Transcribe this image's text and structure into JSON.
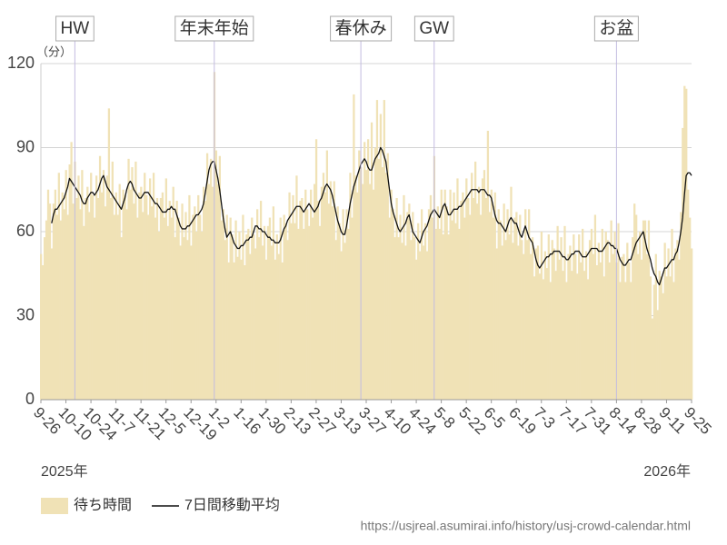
{
  "chart_data": {
    "type": "bar",
    "y_label": "（分）",
    "start_year_label": "2025年",
    "end_year_label": "2026年",
    "source": "https://usjreal.asumirai.info/history/usj-crowd-calendar.html",
    "legend": "bottom-left",
    "grid": true,
    "xlim": [
      0,
      364
    ],
    "ylim": [
      0,
      120
    ],
    "yticks": [
      0,
      30,
      60,
      90,
      120
    ],
    "xticks": [
      {
        "value": 0,
        "label": "9-26"
      },
      {
        "value": 14,
        "label": "10-10"
      },
      {
        "value": 28,
        "label": "10-24"
      },
      {
        "value": 42,
        "label": "11-7"
      },
      {
        "value": 56,
        "label": "11-21"
      },
      {
        "value": 70,
        "label": "12-5"
      },
      {
        "value": 84,
        "label": "12-19"
      },
      {
        "value": 98,
        "label": "1-2"
      },
      {
        "value": 112,
        "label": "1-16"
      },
      {
        "value": 126,
        "label": "1-30"
      },
      {
        "value": 140,
        "label": "2-13"
      },
      {
        "value": 154,
        "label": "2-27"
      },
      {
        "value": 168,
        "label": "3-13"
      },
      {
        "value": 182,
        "label": "3-27"
      },
      {
        "value": 196,
        "label": "4-10"
      },
      {
        "value": 210,
        "label": "4-24"
      },
      {
        "value": 224,
        "label": "5-8"
      },
      {
        "value": 238,
        "label": "5-22"
      },
      {
        "value": 252,
        "label": "6-5"
      },
      {
        "value": 266,
        "label": "6-19"
      },
      {
        "value": 280,
        "label": "7-3"
      },
      {
        "value": 294,
        "label": "7-17"
      },
      {
        "value": 308,
        "label": "7-31"
      },
      {
        "value": 322,
        "label": "8-14"
      },
      {
        "value": 336,
        "label": "8-28"
      },
      {
        "value": 350,
        "label": "9-11"
      },
      {
        "value": 364,
        "label": "9-25"
      }
    ],
    "annotations": [
      {
        "x": 19,
        "label": "HW"
      },
      {
        "x": 97,
        "label": "年末年始"
      },
      {
        "x": 179,
        "label": "春休み"
      },
      {
        "x": 220,
        "label": "GW"
      },
      {
        "x": 322,
        "label": "お盆"
      }
    ],
    "x": [
      0,
      1,
      2,
      3,
      4,
      5,
      6,
      7,
      8,
      9,
      10,
      11,
      12,
      13,
      14,
      15,
      16,
      17,
      18,
      19,
      20,
      21,
      22,
      23,
      24,
      25,
      26,
      27,
      28,
      29,
      30,
      31,
      32,
      33,
      34,
      35,
      36,
      37,
      38,
      39,
      40,
      41,
      42,
      43,
      44,
      45,
      46,
      47,
      48,
      49,
      50,
      51,
      52,
      53,
      54,
      55,
      56,
      57,
      58,
      59,
      60,
      61,
      62,
      63,
      64,
      65,
      66,
      67,
      68,
      69,
      70,
      71,
      72,
      73,
      74,
      75,
      76,
      77,
      78,
      79,
      80,
      81,
      82,
      83,
      84,
      85,
      86,
      87,
      88,
      89,
      90,
      91,
      92,
      93,
      94,
      95,
      96,
      97,
      98,
      99,
      100,
      101,
      102,
      103,
      104,
      105,
      106,
      107,
      108,
      109,
      110,
      111,
      112,
      113,
      114,
      115,
      116,
      117,
      118,
      119,
      120,
      121,
      122,
      123,
      124,
      125,
      126,
      127,
      128,
      129,
      130,
      131,
      132,
      133,
      134,
      135,
      136,
      137,
      138,
      139,
      140,
      141,
      142,
      143,
      144,
      145,
      146,
      147,
      148,
      149,
      150,
      151,
      152,
      153,
      154,
      155,
      156,
      157,
      158,
      159,
      160,
      161,
      162,
      163,
      164,
      165,
      166,
      167,
      168,
      169,
      170,
      171,
      172,
      173,
      174,
      175,
      176,
      177,
      178,
      179,
      180,
      181,
      182,
      183,
      184,
      185,
      186,
      187,
      188,
      189,
      190,
      191,
      192,
      193,
      194,
      195,
      196,
      197,
      198,
      199,
      200,
      201,
      202,
      203,
      204,
      205,
      206,
      207,
      208,
      209,
      210,
      211,
      212,
      213,
      214,
      215,
      216,
      217,
      218,
      219,
      220,
      221,
      222,
      223,
      224,
      225,
      226,
      227,
      228,
      229,
      230,
      231,
      232,
      233,
      234,
      235,
      236,
      237,
      238,
      239,
      240,
      241,
      242,
      243,
      244,
      245,
      246,
      247,
      248,
      249,
      250,
      251,
      252,
      253,
      254,
      255,
      256,
      257,
      258,
      259,
      260,
      261,
      262,
      263,
      264,
      265,
      266,
      267,
      268,
      269,
      270,
      271,
      272,
      273,
      274,
      275,
      276,
      277,
      278,
      279,
      280,
      281,
      282,
      283,
      284,
      285,
      286,
      287,
      288,
      289,
      290,
      291,
      292,
      293,
      294,
      295,
      296,
      297,
      298,
      299,
      300,
      301,
      302,
      303,
      304,
      305,
      306,
      307,
      308,
      309,
      310,
      311,
      312,
      313,
      314,
      315,
      316,
      317,
      318,
      319,
      320,
      321,
      322,
      323,
      324,
      325,
      326,
      327,
      328,
      329,
      330,
      331,
      332,
      333,
      334,
      335,
      336,
      337,
      338,
      339,
      340,
      341,
      342,
      343,
      344,
      345,
      346,
      347,
      348,
      349,
      350,
      351,
      352,
      353,
      354,
      355,
      356,
      357,
      358,
      359,
      360,
      361,
      362,
      363,
      364
    ],
    "series": [
      {
        "name": "待ち時間",
        "type": "bar",
        "color": "#f0e2b6",
        "values": [
          52,
          48,
          58,
          64,
          75,
          70,
          54,
          70,
          75,
          66,
          81,
          64,
          74,
          68,
          82,
          66,
          84,
          92,
          70,
          85,
          72,
          80,
          68,
          82,
          62,
          72,
          76,
          67,
          81,
          73,
          65,
          80,
          72,
          87,
          74,
          82,
          69,
          80,
          104,
          72,
          85,
          66,
          74,
          66,
          77,
          58,
          75,
          73,
          68,
          86,
          75,
          83,
          70,
          85,
          65,
          74,
          76,
          67,
          81,
          73,
          66,
          79,
          69,
          81,
          65,
          72,
          60,
          72,
          74,
          65,
          79,
          62,
          71,
          65,
          76,
          58,
          71,
          65,
          55,
          70,
          58,
          67,
          57,
          73,
          55,
          66,
          69,
          60,
          73,
          66,
          60,
          76,
          71,
          88,
          77,
          86,
          76,
          117,
          89,
          77,
          87,
          64,
          68,
          57,
          66,
          49,
          65,
          59,
          49,
          64,
          51,
          60,
          50,
          66,
          48,
          59,
          61,
          52,
          65,
          59,
          54,
          68,
          58,
          71,
          55,
          62,
          50,
          62,
          65,
          55,
          69,
          50,
          59,
          52,
          65,
          49,
          66,
          63,
          57,
          74,
          63,
          73,
          63,
          80,
          61,
          71,
          72,
          61,
          75,
          68,
          62,
          75,
          65,
          77,
          93,
          71,
          62,
          76,
          81,
          74,
          89,
          70,
          78,
          69,
          78,
          57,
          69,
          63,
          53,
          68,
          56,
          68,
          61,
          81,
          65,
          109,
          80,
          74,
          89,
          83,
          77,
          92,
          82,
          93,
          77,
          99,
          75,
          90,
          107,
          86,
          102,
          83,
          107,
          81,
          88,
          65,
          75,
          68,
          58,
          72,
          58,
          66,
          56,
          73,
          55,
          67,
          70,
          57,
          67,
          58,
          50,
          63,
          53,
          68,
          55,
          63,
          53,
          68,
          73,
          65,
          87,
          61,
          69,
          61,
          75,
          59,
          75,
          69,
          59,
          75,
          64,
          74,
          63,
          79,
          61,
          71,
          74,
          65,
          79,
          72,
          66,
          81,
          72,
          85,
          70,
          76,
          66,
          79,
          82,
          72,
          96,
          67,
          75,
          65,
          74,
          54,
          68,
          64,
          55,
          70,
          57,
          68,
          59,
          76,
          56,
          65,
          67,
          55,
          66,
          57,
          52,
          68,
          57,
          68,
          52,
          58,
          44,
          54,
          55,
          45,
          60,
          43,
          53,
          47,
          59,
          42,
          57,
          54,
          46,
          62,
          50,
          58,
          46,
          62,
          42,
          52,
          55,
          46,
          59,
          52,
          45,
          59,
          49,
          61,
          46,
          53,
          43,
          57,
          61,
          52,
          66,
          48,
          56,
          49,
          61,
          44,
          60,
          57,
          49,
          64,
          52,
          60,
          49,
          63,
          42,
          51,
          52,
          42,
          56,
          49,
          42,
          58,
          70,
          66,
          52,
          60,
          50,
          64,
          64,
          52,
          64,
          44,
          29,
          41,
          52,
          32,
          46,
          44,
          38,
          56,
          44,
          54,
          44,
          61,
          42,
          54,
          57,
          50,
          67,
          97,
          112,
          111,
          75,
          65,
          54
        ]
      },
      {
        "name": "7日間移動平均",
        "type": "line",
        "color": "#111111",
        "values": [
          null,
          null,
          null,
          null,
          null,
          null,
          63,
          66,
          68,
          68,
          69,
          70,
          71,
          72,
          74,
          76,
          79,
          78,
          77,
          76,
          75,
          74,
          73,
          71,
          70,
          70,
          72,
          73,
          74,
          74,
          73,
          74,
          75,
          77,
          79,
          80,
          78,
          76,
          75,
          74,
          73,
          72,
          71,
          70,
          69,
          68,
          70,
          72,
          75,
          77,
          78,
          77,
          75,
          74,
          73,
          72,
          72,
          73,
          74,
          74,
          74,
          73,
          72,
          71,
          70,
          70,
          69,
          68,
          67,
          67,
          67,
          68,
          68,
          69,
          68,
          68,
          66,
          64,
          62,
          61,
          61,
          61,
          62,
          62,
          63,
          64,
          65,
          66,
          66,
          67,
          68,
          70,
          74,
          78,
          82,
          84,
          85,
          85,
          82,
          79,
          75,
          70,
          65,
          61,
          58,
          59,
          60,
          58,
          56,
          55,
          54,
          54,
          55,
          55,
          56,
          57,
          57,
          58,
          58,
          60,
          62,
          62,
          61,
          61,
          60,
          60,
          59,
          58,
          58,
          57,
          57,
          56,
          56,
          56,
          57,
          59,
          61,
          62,
          64,
          65,
          66,
          67,
          68,
          69,
          69,
          69,
          68,
          67,
          68,
          69,
          70,
          69,
          68,
          67,
          68,
          69,
          71,
          72,
          74,
          76,
          77,
          76,
          75,
          73,
          70,
          67,
          64,
          62,
          60,
          59,
          59,
          62,
          66,
          70,
          73,
          76,
          78,
          80,
          82,
          84,
          85,
          86,
          85,
          83,
          82,
          82,
          84,
          86,
          87,
          88,
          90,
          89,
          87,
          85,
          80,
          75,
          70,
          67,
          65,
          63,
          61,
          60,
          61,
          62,
          63,
          65,
          66,
          63,
          60,
          59,
          58,
          57,
          56,
          58,
          60,
          61,
          62,
          64,
          66,
          67,
          68,
          67,
          66,
          65,
          67,
          69,
          70,
          68,
          66,
          66,
          67,
          68,
          68,
          68,
          69,
          69,
          70,
          71,
          72,
          73,
          74,
          75,
          75,
          75,
          75,
          74,
          75,
          75,
          75,
          74,
          73,
          73,
          72,
          69,
          66,
          64,
          63,
          63,
          62,
          61,
          60,
          62,
          64,
          65,
          64,
          63,
          63,
          61,
          59,
          58,
          60,
          62,
          60,
          58,
          57,
          56,
          53,
          50,
          48,
          47,
          48,
          49,
          50,
          51,
          51,
          52,
          52,
          53,
          53,
          53,
          53,
          52,
          51,
          51,
          50,
          50,
          51,
          52,
          52,
          53,
          53,
          53,
          52,
          51,
          51,
          51,
          52,
          53,
          54,
          54,
          54,
          54,
          53,
          53,
          53,
          54,
          55,
          56,
          56,
          55,
          55,
          54,
          54,
          52,
          50,
          49,
          48,
          48,
          49,
          50,
          50,
          52,
          54,
          56,
          57,
          58,
          59,
          60,
          57,
          54,
          52,
          50,
          47,
          45,
          44,
          42,
          41,
          43,
          45,
          47,
          47,
          48,
          49,
          50,
          50,
          52,
          53,
          56,
          60,
          65,
          73,
          80,
          81,
          81,
          80
        ]
      }
    ]
  }
}
